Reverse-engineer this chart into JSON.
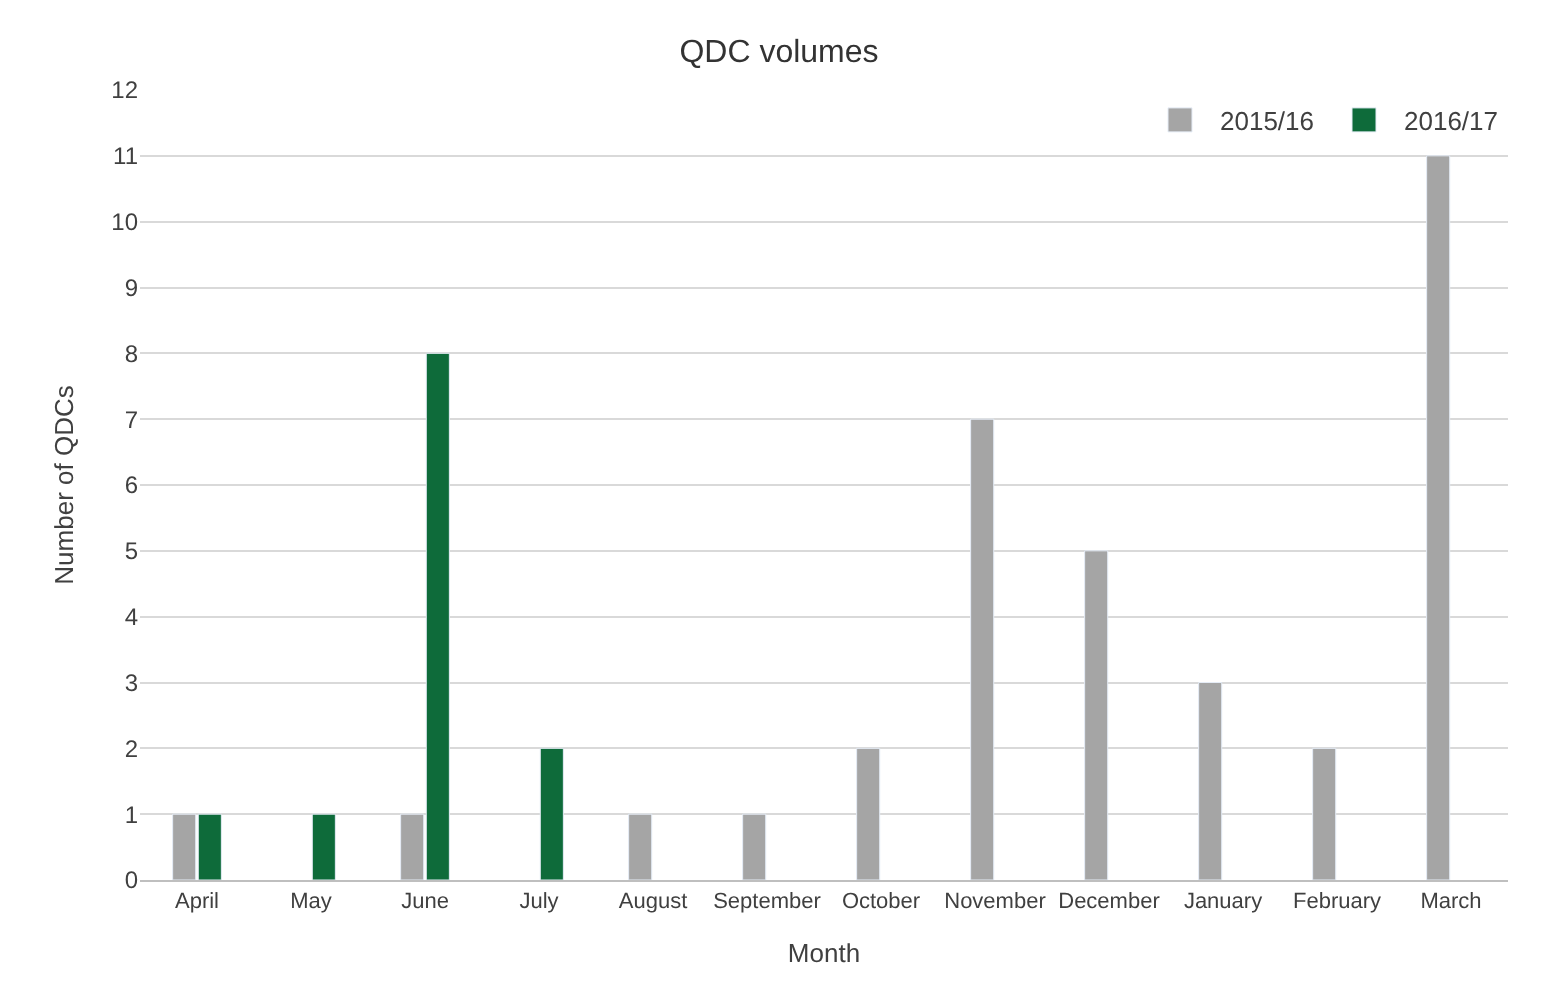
{
  "chart_data": {
    "type": "bar",
    "title": "QDC volumes",
    "xlabel": "Month",
    "ylabel": "Number of QDCs",
    "categories": [
      "April",
      "May",
      "June",
      "July",
      "August",
      "September",
      "October",
      "November",
      "December",
      "January",
      "February",
      "March"
    ],
    "series": [
      {
        "name": "2015/16",
        "color": "#a5a5a5",
        "values": [
          1,
          null,
          1,
          null,
          1,
          1,
          2,
          7,
          5,
          3,
          2,
          11
        ]
      },
      {
        "name": "2016/17",
        "color": "#0e6b3a",
        "values": [
          1,
          1,
          8,
          2,
          null,
          null,
          null,
          null,
          null,
          null,
          null,
          null
        ]
      }
    ],
    "ylim": [
      0,
      12
    ],
    "yticks": [
      0,
      1,
      2,
      3,
      4,
      5,
      6,
      7,
      8,
      9,
      10,
      11,
      12
    ],
    "grid": "y",
    "legend": "top right"
  }
}
